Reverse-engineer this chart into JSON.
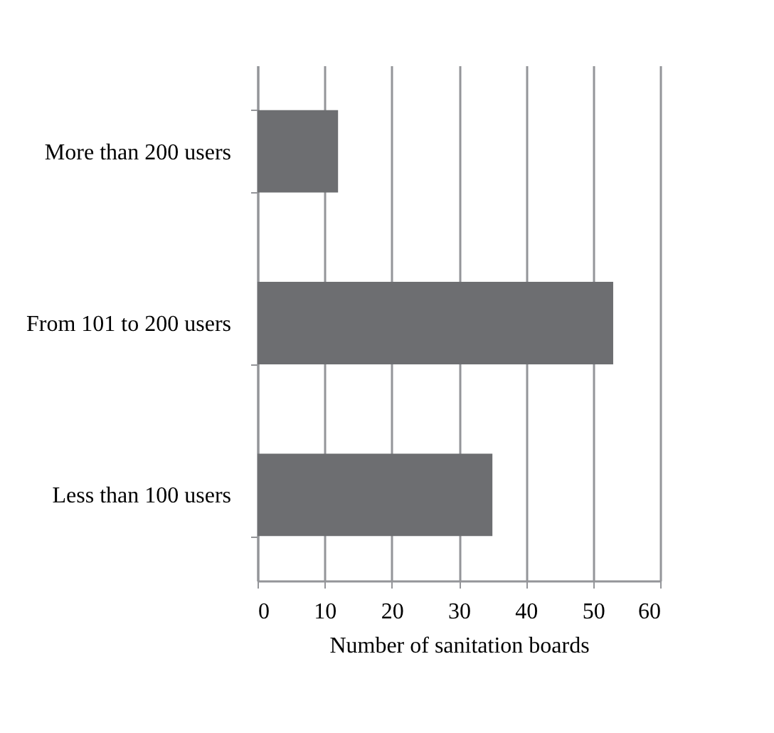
{
  "chart_data": {
    "type": "bar",
    "orientation": "horizontal",
    "xlabel": "Number of sanitation boards",
    "categories": [
      "More than 200 users",
      "From 101 to 200 users",
      "Less than 100 users"
    ],
    "values": [
      12,
      53,
      35
    ],
    "color": "#6d6e71",
    "xlim": [
      0,
      60
    ],
    "xticks": [
      0,
      10,
      20,
      30,
      40,
      50,
      60
    ],
    "grid": "x"
  }
}
